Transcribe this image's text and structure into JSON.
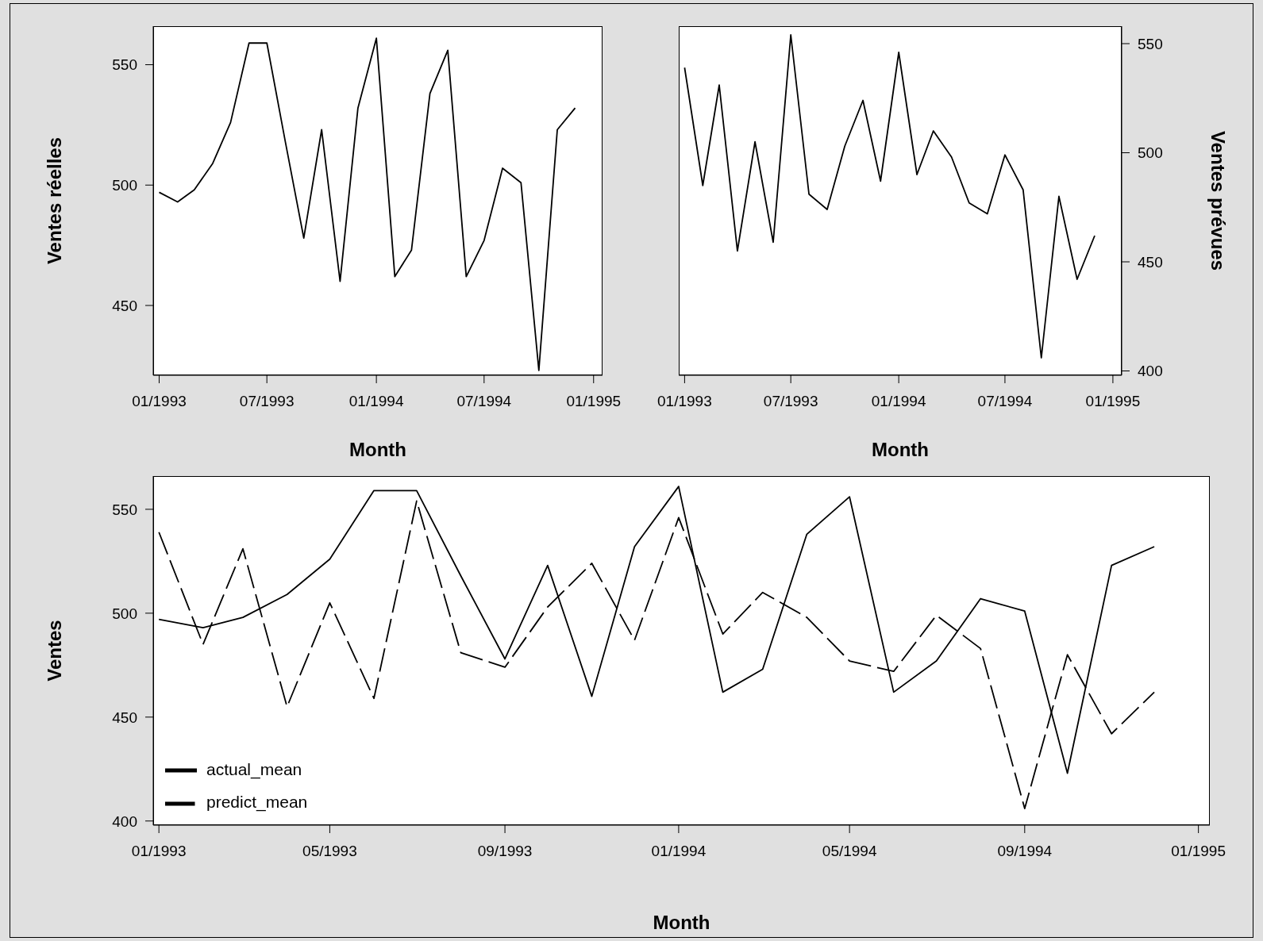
{
  "chart_data": [
    {
      "type": "line",
      "x": [
        "1993-01",
        "1993-02",
        "1993-03",
        "1993-04",
        "1993-05",
        "1993-06",
        "1993-07",
        "1993-08",
        "1993-09",
        "1993-10",
        "1993-11",
        "1993-12",
        "1994-01",
        "1994-02",
        "1994-03",
        "1994-04",
        "1994-05",
        "1994-06",
        "1994-07",
        "1994-08",
        "1994-09",
        "1994-10",
        "1994-11",
        "1994-12"
      ],
      "series": [
        {
          "color": "#000000",
          "values": [
            497,
            493,
            498,
            509,
            526,
            559,
            559,
            518,
            478,
            523,
            460,
            532,
            561,
            462,
            473,
            538,
            556,
            462,
            477,
            507,
            501,
            423,
            523,
            532
          ]
        }
      ],
      "xlabel": "Month",
      "ylabel": "Ventes réelles",
      "xlim": [
        "1992-12-22",
        "1995-01-16"
      ],
      "xticks": [
        {
          "value": "1993-01",
          "label": "01/1993"
        },
        {
          "value": "1993-07",
          "label": "07/1993"
        },
        {
          "value": "1994-01",
          "label": "01/1994"
        },
        {
          "value": "1994-07",
          "label": "07/1994"
        },
        {
          "value": "1995-01",
          "label": "01/1995"
        }
      ],
      "ylim": [
        421,
        566
      ],
      "yticks": [
        450,
        500,
        550
      ],
      "marker": "none"
    },
    {
      "type": "line",
      "x": [
        "1993-01",
        "1993-02",
        "1993-03",
        "1993-04",
        "1993-05",
        "1993-06",
        "1993-07",
        "1993-08",
        "1993-09",
        "1993-10",
        "1993-11",
        "1993-12",
        "1994-01",
        "1994-02",
        "1994-03",
        "1994-04",
        "1994-05",
        "1994-06",
        "1994-07",
        "1994-08",
        "1994-09",
        "1994-10",
        "1994-11",
        "1994-12"
      ],
      "series": [
        {
          "color": "#000000",
          "axis": "y2",
          "values": [
            539,
            485,
            531,
            455,
            505,
            459,
            554,
            481,
            474,
            503,
            524,
            487,
            546,
            490,
            510,
            498,
            477,
            472,
            499,
            483,
            406,
            480,
            442,
            462
          ]
        }
      ],
      "xlabel": "Month",
      "y2label": "Ventes prévues",
      "xlim": [
        "1992-12-22",
        "1995-01-16"
      ],
      "xticks": [
        {
          "value": "1993-01",
          "label": "01/1993"
        },
        {
          "value": "1993-07",
          "label": "07/1993"
        },
        {
          "value": "1994-01",
          "label": "01/1994"
        },
        {
          "value": "1994-07",
          "label": "07/1994"
        },
        {
          "value": "1995-01",
          "label": "01/1995"
        }
      ],
      "y2lim": [
        398,
        558
      ],
      "y2ticks": [
        400,
        450,
        500,
        550
      ],
      "marker": "none"
    },
    {
      "type": "line",
      "x": [
        "1993-01",
        "1993-02",
        "1993-03",
        "1993-04",
        "1993-05",
        "1993-06",
        "1993-07",
        "1993-08",
        "1993-09",
        "1993-10",
        "1993-11",
        "1993-12",
        "1994-01",
        "1994-02",
        "1994-03",
        "1994-04",
        "1994-05",
        "1994-06",
        "1994-07",
        "1994-08",
        "1994-09",
        "1994-10",
        "1994-11",
        "1994-12"
      ],
      "series": [
        {
          "name": "actual_mean",
          "color": "#000000",
          "line_style": "solid",
          "values": [
            497,
            493,
            498,
            509,
            526,
            559,
            559,
            518,
            478,
            523,
            460,
            532,
            561,
            462,
            473,
            538,
            556,
            462,
            477,
            507,
            501,
            423,
            523,
            532
          ]
        },
        {
          "name": "predict_mean",
          "color": "#000000",
          "line_style": "dashed",
          "values": [
            539,
            485,
            531,
            455,
            505,
            459,
            554,
            481,
            474,
            503,
            524,
            487,
            546,
            490,
            510,
            498,
            477,
            472,
            499,
            483,
            406,
            480,
            442,
            462
          ]
        }
      ],
      "xlabel": "Month",
      "ylabel": "Ventes",
      "xlim": [
        "1992-12-28",
        "1995-01-09"
      ],
      "xticks": [
        {
          "value": "1993-01",
          "label": "01/1993"
        },
        {
          "value": "1993-05",
          "label": "05/1993"
        },
        {
          "value": "1993-09",
          "label": "09/1993"
        },
        {
          "value": "1994-01",
          "label": "01/1994"
        },
        {
          "value": "1994-05",
          "label": "05/1994"
        },
        {
          "value": "1994-09",
          "label": "09/1994"
        },
        {
          "value": "1995-01",
          "label": "01/1995"
        }
      ],
      "ylim": [
        398,
        566
      ],
      "yticks": [
        400,
        450,
        500,
        550
      ],
      "marker": "none",
      "legend": "bottom left"
    }
  ]
}
